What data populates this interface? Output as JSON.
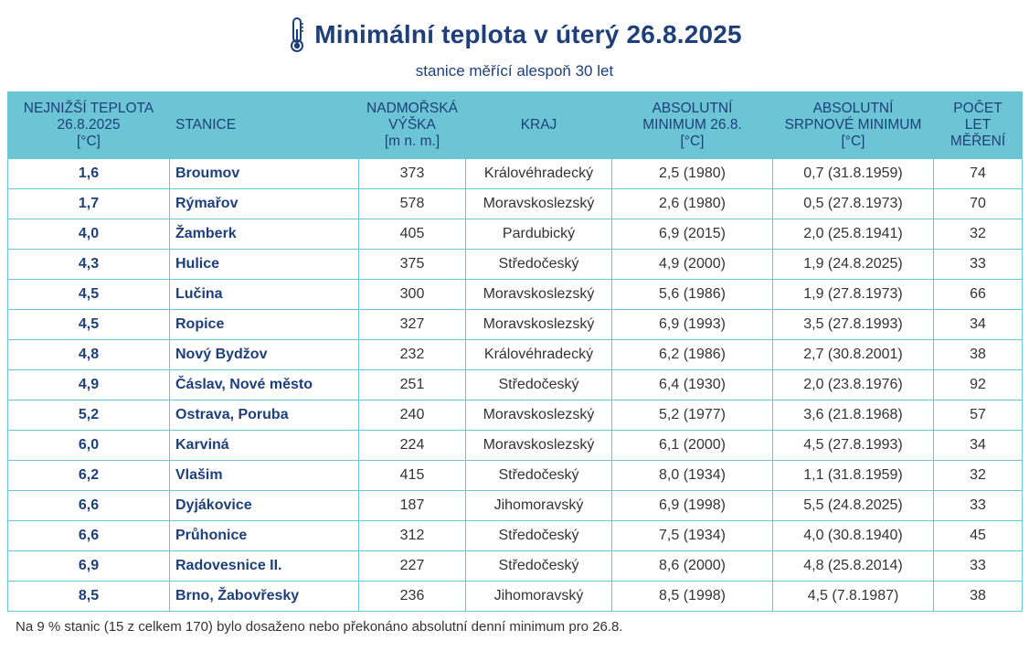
{
  "header": {
    "title": "Minimální teplota v úterý 26.8.2025",
    "subtitle": "stanice měřící alespoň 30 let",
    "icon": "thermometer-icon",
    "accent_color": "#1e3f7a",
    "header_bg_color": "#6cc5d5"
  },
  "table": {
    "columns": [
      {
        "key": "temp",
        "lines": [
          "NEJNIŽŠÍ TEPLOTA",
          "26.8.2025",
          "[°C]"
        ]
      },
      {
        "key": "station",
        "lines": [
          "STANICE"
        ]
      },
      {
        "key": "altitude",
        "lines": [
          "NADMOŘSKÁ",
          "VÝŠKA",
          "[m n. m.]"
        ]
      },
      {
        "key": "region",
        "lines": [
          "KRAJ"
        ]
      },
      {
        "key": "abs_min",
        "lines": [
          "ABSOLUTNÍ",
          "MINIMUM 26.8.",
          "[°C]"
        ]
      },
      {
        "key": "aug_min",
        "lines": [
          "ABSOLUTNÍ",
          "SRPNOVÉ MINIMUM",
          "[°C]"
        ]
      },
      {
        "key": "years",
        "lines": [
          "POČET",
          "LET",
          "MĚŘENÍ"
        ]
      }
    ],
    "rows": [
      {
        "temp": "1,6",
        "station": "Broumov",
        "altitude": "373",
        "region": "Královéhradecký",
        "abs_min": "2,5 (1980)",
        "aug_min": "0,7 (31.8.1959)",
        "years": "74"
      },
      {
        "temp": "1,7",
        "station": "Rýmařov",
        "altitude": "578",
        "region": "Moravskoslezský",
        "abs_min": "2,6 (1980)",
        "aug_min": "0,5 (27.8.1973)",
        "years": "70"
      },
      {
        "temp": "4,0",
        "station": "Žamberk",
        "altitude": "405",
        "region": "Pardubický",
        "abs_min": "6,9 (2015)",
        "aug_min": "2,0 (25.8.1941)",
        "years": "32"
      },
      {
        "temp": "4,3",
        "station": "Hulice",
        "altitude": "375",
        "region": "Středočeský",
        "abs_min": "4,9 (2000)",
        "aug_min": "1,9 (24.8.2025)",
        "years": "33"
      },
      {
        "temp": "4,5",
        "station": "Lučina",
        "altitude": "300",
        "region": "Moravskoslezský",
        "abs_min": "5,6 (1986)",
        "aug_min": "1,9 (27.8.1973)",
        "years": "66"
      },
      {
        "temp": "4,5",
        "station": "Ropice",
        "altitude": "327",
        "region": "Moravskoslezský",
        "abs_min": "6,9 (1993)",
        "aug_min": "3,5 (27.8.1993)",
        "years": "34"
      },
      {
        "temp": "4,8",
        "station": "Nový Bydžov",
        "altitude": "232",
        "region": "Královéhradecký",
        "abs_min": "6,2 (1986)",
        "aug_min": "2,7 (30.8.2001)",
        "years": "38"
      },
      {
        "temp": "4,9",
        "station": "Čáslav, Nové město",
        "altitude": "251",
        "region": "Středočeský",
        "abs_min": "6,4 (1930)",
        "aug_min": "2,0 (23.8.1976)",
        "years": "92"
      },
      {
        "temp": "5,2",
        "station": "Ostrava, Poruba",
        "altitude": "240",
        "region": "Moravskoslezský",
        "abs_min": "5,2 (1977)",
        "aug_min": "3,6 (21.8.1968)",
        "years": "57"
      },
      {
        "temp": "6,0",
        "station": "Karviná",
        "altitude": "224",
        "region": "Moravskoslezský",
        "abs_min": "6,1 (2000)",
        "aug_min": "4,5 (27.8.1993)",
        "years": "34"
      },
      {
        "temp": "6,2",
        "station": "Vlašim",
        "altitude": "415",
        "region": "Středočeský",
        "abs_min": "8,0 (1934)",
        "aug_min": "1,1 (31.8.1959)",
        "years": "32"
      },
      {
        "temp": "6,6",
        "station": "Dyjákovice",
        "altitude": "187",
        "region": "Jihomoravský",
        "abs_min": "6,9 (1998)",
        "aug_min": "5,5 (24.8.2025)",
        "years": "33"
      },
      {
        "temp": "6,6",
        "station": "Průhonice",
        "altitude": "312",
        "region": "Středočeský",
        "abs_min": "7,5 (1934)",
        "aug_min": "4,0 (30.8.1940)",
        "years": "45"
      },
      {
        "temp": "6,9",
        "station": "Radovesnice II.",
        "altitude": "227",
        "region": "Středočeský",
        "abs_min": "8,6 (2000)",
        "aug_min": "4,8 (25.8.2014)",
        "years": "33"
      },
      {
        "temp": "8,5",
        "station": "Brno, Žabovřesky",
        "altitude": "236",
        "region": "Jihomoravský",
        "abs_min": "8,5 (1998)",
        "aug_min": "4,5 (7.8.1987)",
        "years": "38"
      }
    ]
  },
  "footnote": "Na 9 % stanic (15 z celkem 170) bylo dosaženo nebo překonáno absolutní denní minimum pro 26.8."
}
